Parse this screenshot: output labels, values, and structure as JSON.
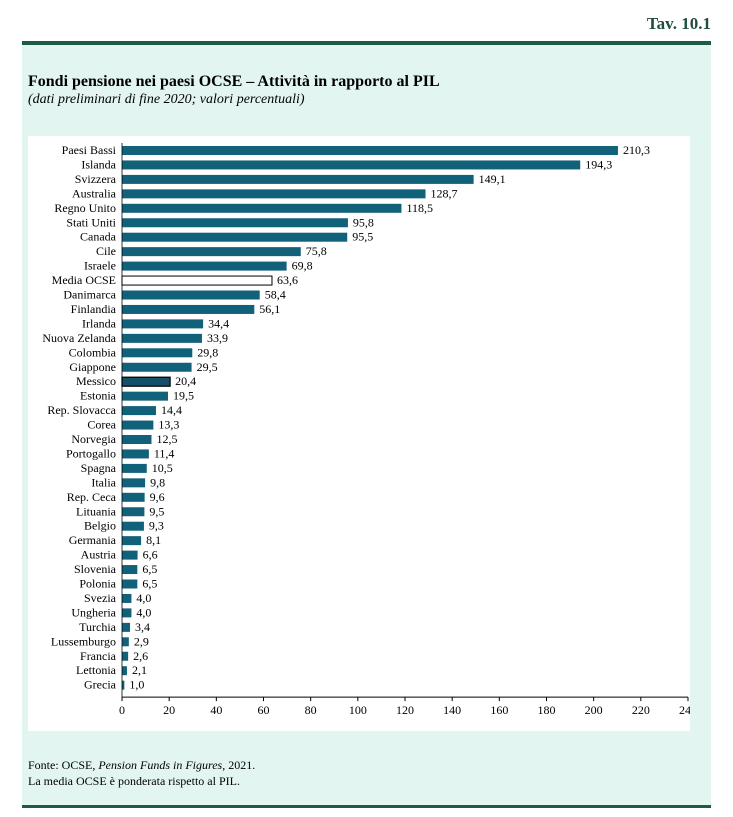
{
  "header": {
    "table_number": "Tav. 10.1"
  },
  "footer": {
    "source_prefix": "Fonte: OCSE, ",
    "source_title": "Pension Funds in Figures",
    "source_suffix": ", 2021.",
    "note": "La media OCSE è ponderata rispetto al PIL."
  },
  "colors": {
    "bar": "#12617a",
    "average": "#ffffff",
    "highlight": "#15506a",
    "panel": "#e3f5f1",
    "rule": "#1e5b46"
  },
  "chart_data": {
    "type": "bar",
    "orientation": "horizontal",
    "title": "Fondi pensione nei paesi OCSE – Attività in rapporto al PIL",
    "subtitle": "(dati preliminari di fine 2020; valori percentuali)",
    "xlim": [
      0,
      240
    ],
    "xticks": [
      0,
      20,
      40,
      60,
      80,
      100,
      120,
      140,
      160,
      180,
      200,
      220,
      240
    ],
    "grid": false,
    "categories": [
      "Paesi Bassi",
      "Islanda",
      "Svizzera",
      "Australia",
      "Regno Unito",
      "Stati Uniti",
      "Canada",
      "Cile",
      "Israele",
      "Media OCSE",
      "Danimarca",
      "Finlandia",
      "Irlanda",
      "Nuova Zelanda",
      "Colombia",
      "Giappone",
      "Messico",
      "Estonia",
      "Rep. Slovacca",
      "Corea",
      "Norvegia",
      "Portogallo",
      "Spagna",
      "Italia",
      "Rep. Ceca",
      "Lituania",
      "Belgio",
      "Germania",
      "Austria",
      "Slovenia",
      "Polonia",
      "Svezia",
      "Ungheria",
      "Turchia",
      "Lussemburgo",
      "Francia",
      "Lettonia",
      "Grecia"
    ],
    "values": [
      210.3,
      194.3,
      149.1,
      128.7,
      118.5,
      95.8,
      95.5,
      75.8,
      69.8,
      63.6,
      58.4,
      56.1,
      34.4,
      33.9,
      29.8,
      29.5,
      20.4,
      19.5,
      14.4,
      13.3,
      12.5,
      11.4,
      10.5,
      9.8,
      9.6,
      9.5,
      9.3,
      8.1,
      6.6,
      6.5,
      6.5,
      4.0,
      4.0,
      3.4,
      2.9,
      2.6,
      2.1,
      1.0
    ],
    "value_labels": [
      "210,3",
      "194,3",
      "149,1",
      "128,7",
      "118,5",
      "95,8",
      "95,5",
      "75,8",
      "69,8",
      "63,6",
      "58,4",
      "56,1",
      "34,4",
      "33,9",
      "29,8",
      "29,5",
      "20,4",
      "19,5",
      "14,4",
      "13,3",
      "12,5",
      "11,4",
      "10,5",
      "9,8",
      "9,6",
      "9,5",
      "9,3",
      "8,1",
      "6,6",
      "6,5",
      "6,5",
      "4,0",
      "4,0",
      "3,4",
      "2,9",
      "2,6",
      "2,1",
      "1,0"
    ],
    "special_bars": {
      "Media OCSE": "outline-white",
      "Messico": "dark-outline"
    }
  }
}
